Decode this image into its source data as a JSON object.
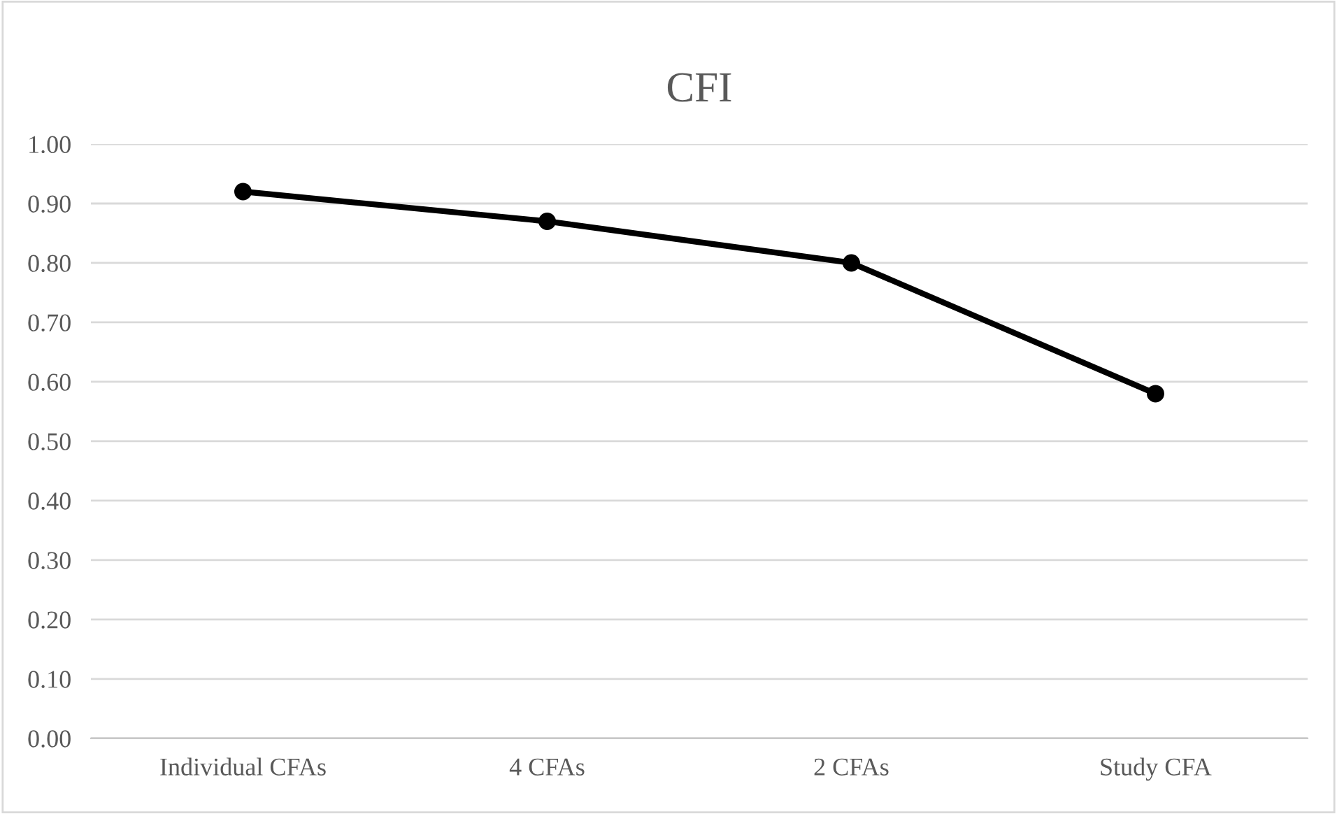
{
  "chart_data": {
    "type": "line",
    "title": "CFI",
    "categories": [
      "Individual CFAs",
      "4 CFAs",
      "2 CFAs",
      "Study CFA"
    ],
    "series": [
      {
        "color": "#000000",
        "values": [
          0.92,
          0.87,
          0.8,
          0.58
        ]
      }
    ],
    "ylim": [
      0,
      1
    ],
    "yticks": [
      {
        "value": 0,
        "label": "0.00"
      },
      {
        "value": 0.1,
        "label": "0.10"
      },
      {
        "value": 0.2,
        "label": "0.20"
      },
      {
        "value": 0.3,
        "label": "0.30"
      },
      {
        "value": 0.4,
        "label": "0.40"
      },
      {
        "value": 0.5,
        "label": "0.50"
      },
      {
        "value": 0.6,
        "label": "0.60"
      },
      {
        "value": 0.7,
        "label": "0.70"
      },
      {
        "value": 0.8,
        "label": "0.80"
      },
      {
        "value": 0.9,
        "label": "0.90"
      },
      {
        "value": 1,
        "label": "1.00"
      }
    ],
    "grid": "y",
    "marker": "circle",
    "line_style": "solid",
    "legend": false
  }
}
